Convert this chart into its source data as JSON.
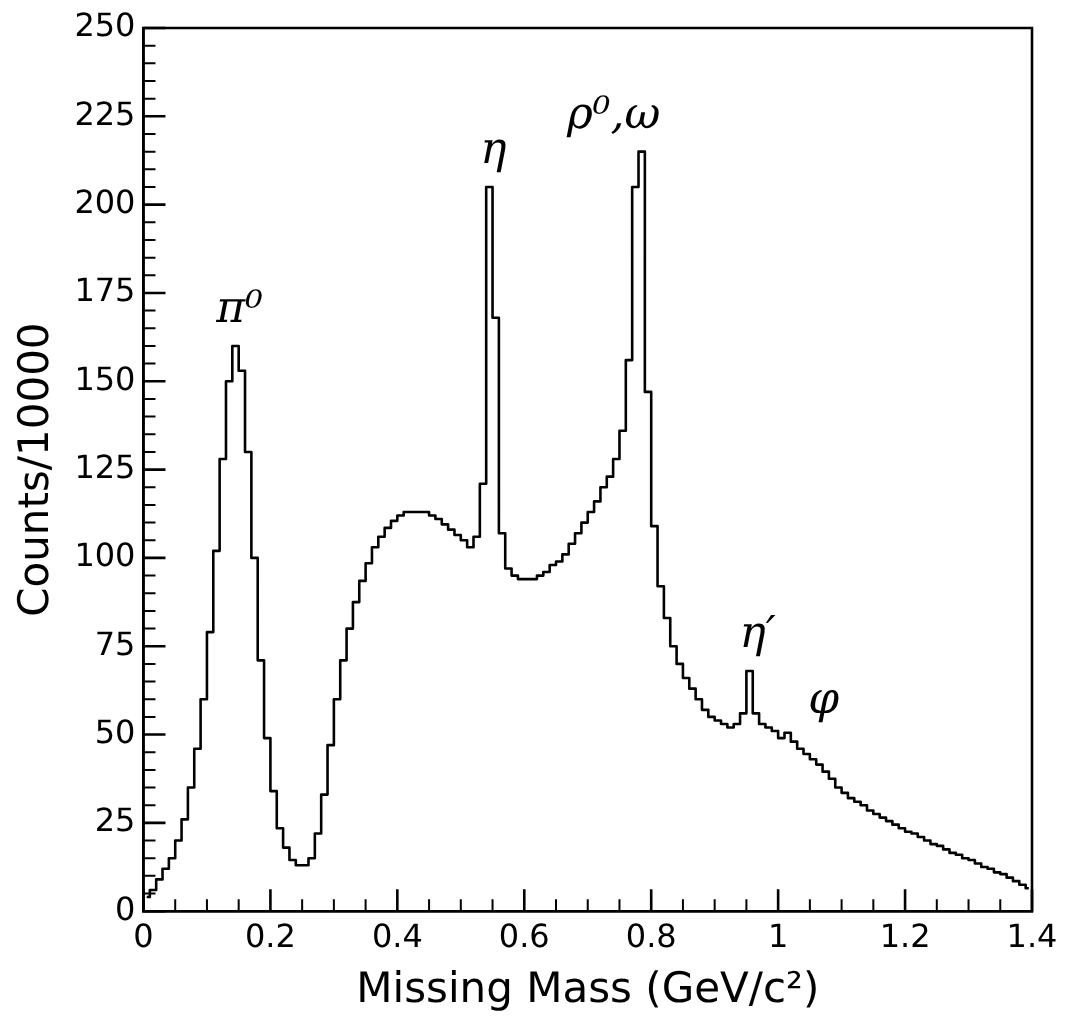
{
  "chart_data": {
    "type": "step",
    "xlabel": "Missing Mass (GeV/c²)",
    "ylabel": "Counts/10000",
    "color": "#000000",
    "marker": "none",
    "x": [
      0.005,
      0.015,
      0.025,
      0.035,
      0.045,
      0.055,
      0.065,
      0.075,
      0.085,
      0.095,
      0.105,
      0.115,
      0.125,
      0.135,
      0.145,
      0.155,
      0.165,
      0.175,
      0.185,
      0.195,
      0.205,
      0.215,
      0.225,
      0.235,
      0.245,
      0.255,
      0.265,
      0.275,
      0.285,
      0.295,
      0.305,
      0.315,
      0.325,
      0.335,
      0.345,
      0.355,
      0.365,
      0.375,
      0.385,
      0.395,
      0.405,
      0.415,
      0.425,
      0.435,
      0.445,
      0.455,
      0.465,
      0.475,
      0.485,
      0.495,
      0.505,
      0.515,
      0.525,
      0.535,
      0.545,
      0.555,
      0.565,
      0.575,
      0.585,
      0.595,
      0.605,
      0.615,
      0.625,
      0.635,
      0.645,
      0.655,
      0.665,
      0.675,
      0.685,
      0.695,
      0.705,
      0.715,
      0.725,
      0.735,
      0.745,
      0.755,
      0.765,
      0.775,
      0.785,
      0.795,
      0.805,
      0.815,
      0.825,
      0.835,
      0.845,
      0.855,
      0.865,
      0.875,
      0.885,
      0.895,
      0.905,
      0.915,
      0.925,
      0.935,
      0.945,
      0.955,
      0.965,
      0.975,
      0.985,
      0.995,
      1.005,
      1.015,
      1.025,
      1.035,
      1.045,
      1.055,
      1.065,
      1.075,
      1.085,
      1.095,
      1.105,
      1.115,
      1.125,
      1.135,
      1.145,
      1.155,
      1.165,
      1.175,
      1.185,
      1.195,
      1.205,
      1.215,
      1.225,
      1.235,
      1.245,
      1.255,
      1.265,
      1.275,
      1.285,
      1.295,
      1.305,
      1.315,
      1.325,
      1.335,
      1.345,
      1.355,
      1.365,
      1.375,
      1.385,
      1.395
    ],
    "values": [
      4,
      6,
      9,
      12,
      15,
      20,
      26,
      35,
      46,
      60,
      79,
      102,
      128,
      150,
      160,
      153,
      130,
      100,
      71,
      49,
      34,
      23.5,
      18,
      14.5,
      13,
      13,
      15,
      22,
      33,
      47,
      60,
      71,
      80,
      87.5,
      93.5,
      98.5,
      103,
      106,
      108.5,
      110.5,
      112,
      113,
      113,
      113,
      113,
      112,
      111,
      109.5,
      108,
      106.5,
      105,
      103,
      106,
      121,
      205,
      168,
      107,
      97,
      95,
      94,
      94,
      94,
      95,
      96,
      98,
      99,
      101,
      104,
      107,
      110,
      113,
      116,
      120,
      123,
      128,
      136,
      156,
      205,
      215,
      147,
      109,
      92,
      83,
      75,
      70,
      66,
      63,
      60,
      57,
      55,
      54,
      53,
      52,
      53,
      56,
      68,
      56,
      53,
      52,
      51,
      49,
      50.5,
      48,
      46,
      44.5,
      43,
      41.5,
      39.5,
      37.5,
      35,
      33.5,
      32,
      31,
      30,
      28.5,
      27.5,
      26.5,
      25.5,
      24.5,
      23.5,
      22.5,
      22,
      21,
      20,
      19,
      18.5,
      17.5,
      16.5,
      16,
      15,
      14.5,
      13.5,
      12.5,
      12,
      11,
      10.5,
      9.5,
      8.5,
      7.5,
      6.5
    ],
    "xlim": [
      0,
      1.4
    ],
    "xticks": [
      0,
      0.2,
      0.4,
      0.6,
      0.8,
      1,
      1.2,
      1.4
    ],
    "ylim": [
      0,
      250
    ],
    "yticks": [
      0,
      25,
      50,
      75,
      100,
      125,
      150,
      175,
      200,
      225,
      250
    ],
    "annotations": [
      {
        "text": "π⁰",
        "x": 0.145,
        "y": 160
      },
      {
        "text": "η",
        "x": 0.545,
        "y": 205
      },
      {
        "text": "ρ⁰,ω",
        "x": 0.785,
        "y": 215
      },
      {
        "text": "η′",
        "x": 0.955,
        "y": 68
      },
      {
        "text": "φ",
        "x": 1.015,
        "y": 50.5
      }
    ]
  }
}
